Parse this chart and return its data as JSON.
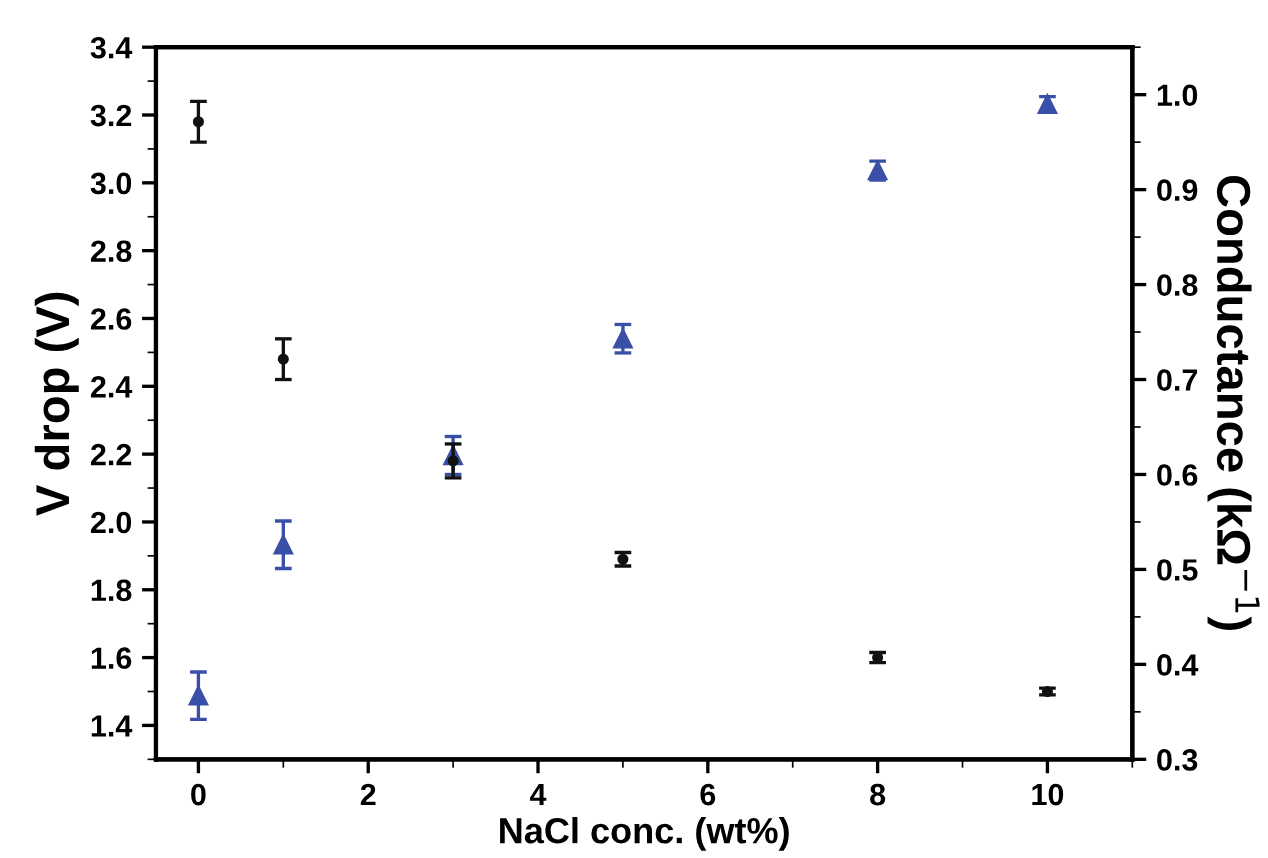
{
  "chart_data": {
    "type": "scatter",
    "xlabel": "NaCl conc. (wt%)",
    "ylabel": "V drop (V)",
    "y2label": "Conductance (kΩ$^{−1}$)",
    "x": [
      0,
      1,
      3,
      5,
      8,
      10
    ],
    "series": [
      {
        "color": "#111111",
        "marker": "circle",
        "values": [
          3.18,
          2.48,
          2.18,
          1.89,
          1.6,
          1.5
        ],
        "errors": [
          0.06,
          0.06,
          0.05,
          0.02,
          0.015,
          0.01
        ]
      },
      {
        "color": "#3a4fa8",
        "marker": "triangle",
        "axis": "y2",
        "values": [
          0.367,
          0.526,
          0.62,
          0.743,
          0.92,
          0.99
        ],
        "errors": [
          0.025,
          0.025,
          0.02,
          0.015,
          0.01,
          0.008
        ]
      }
    ],
    "xlim": [
      -0.5,
      11
    ],
    "xticks": [
      0,
      2,
      4,
      6,
      8,
      10
    ],
    "ylim": [
      1.3,
      3.4
    ],
    "yticks": [
      {
        "value": 1.4,
        "label": "1.4"
      },
      {
        "value": 1.6,
        "label": "1.6"
      },
      {
        "value": 1.8,
        "label": "1.8"
      },
      {
        "value": 2.0,
        "label": "2.0"
      },
      {
        "value": 2.2,
        "label": "2.2"
      },
      {
        "value": 2.4,
        "label": "2.4"
      },
      {
        "value": 2.6,
        "label": "2.6"
      },
      {
        "value": 2.8,
        "label": "2.8"
      },
      {
        "value": 3.0,
        "label": "3.0"
      },
      {
        "value": 3.2,
        "label": "3.2"
      },
      {
        "value": 3.4,
        "label": "3.4"
      }
    ],
    "y2lim": [
      0.3,
      1.05
    ],
    "y2ticks": [
      0.3,
      0.4,
      0.5,
      0.6,
      0.7,
      0.8,
      0.9,
      {
        "value": 1.0,
        "label": "1.0"
      }
    ],
    "grid": false,
    "legend": false
  }
}
